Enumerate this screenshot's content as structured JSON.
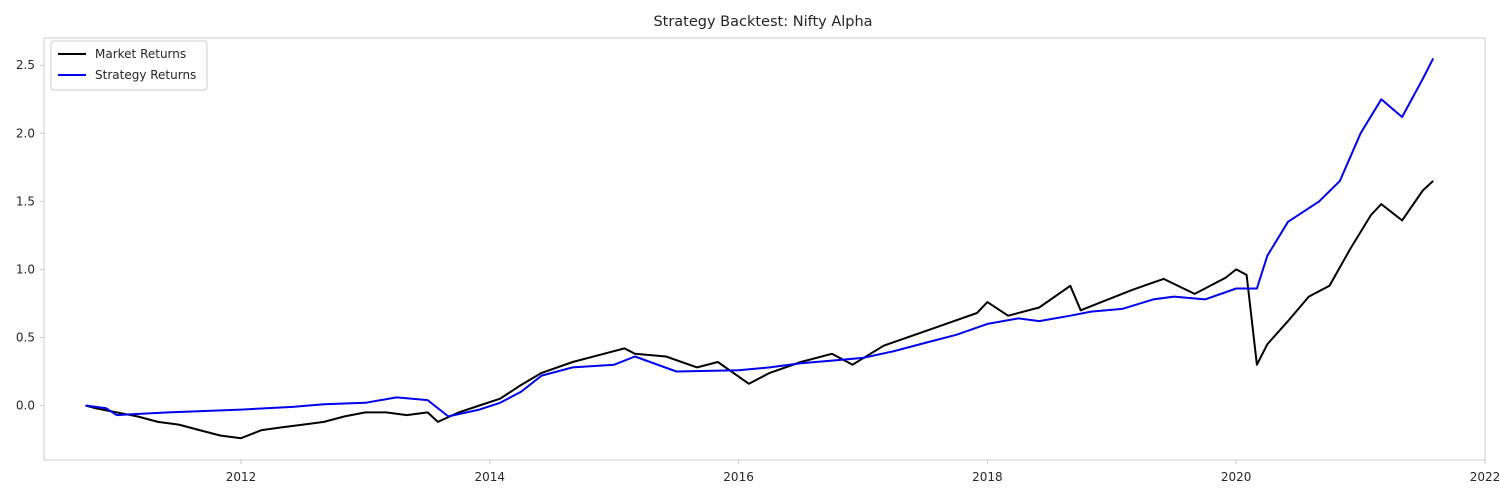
{
  "chart_data": {
    "type": "line",
    "title": "Strategy Backtest: Nifty Alpha",
    "xlabel": "",
    "ylabel": "",
    "x_ticks": [
      "2012",
      "2014",
      "2016",
      "2018",
      "2020",
      "2022"
    ],
    "y_ticks": [
      "0.0",
      "0.5",
      "1.0",
      "1.5",
      "2.0",
      "2.5"
    ],
    "xlim": [
      "2010-06",
      "2022-01"
    ],
    "ylim": [
      -0.4,
      2.7
    ],
    "grid": false,
    "legend": {
      "position": "top-left"
    },
    "series": [
      {
        "name": "Market Returns",
        "color": "#000000",
        "x": [
          "2010-10",
          "2010-11",
          "2011-01",
          "2011-03",
          "2011-05",
          "2011-07",
          "2011-09",
          "2011-11",
          "2012-01",
          "2012-03",
          "2012-05",
          "2012-07",
          "2012-09",
          "2012-11",
          "2013-01",
          "2013-03",
          "2013-05",
          "2013-07",
          "2013-08",
          "2013-10",
          "2013-12",
          "2014-02",
          "2014-04",
          "2014-06",
          "2014-09",
          "2014-12",
          "2015-02",
          "2015-03",
          "2015-06",
          "2015-09",
          "2015-11",
          "2016-02",
          "2016-04",
          "2016-07",
          "2016-10",
          "2016-12",
          "2017-03",
          "2017-06",
          "2017-09",
          "2017-12",
          "2018-01",
          "2018-03",
          "2018-06",
          "2018-09",
          "2018-10",
          "2018-12",
          "2019-03",
          "2019-06",
          "2019-09",
          "2019-12",
          "2020-01",
          "2020-02",
          "2020-03",
          "2020-04",
          "2020-06",
          "2020-08",
          "2020-10",
          "2020-12",
          "2021-02",
          "2021-03",
          "2021-05",
          "2021-07",
          "2021-08"
        ],
        "y": [
          0.0,
          -0.02,
          -0.05,
          -0.08,
          -0.12,
          -0.14,
          -0.18,
          -0.22,
          -0.24,
          -0.18,
          -0.16,
          -0.14,
          -0.12,
          -0.08,
          -0.05,
          -0.05,
          -0.07,
          -0.05,
          -0.12,
          -0.05,
          0.0,
          0.05,
          0.15,
          0.24,
          0.32,
          0.38,
          0.42,
          0.38,
          0.36,
          0.28,
          0.32,
          0.16,
          0.24,
          0.32,
          0.38,
          0.3,
          0.44,
          0.52,
          0.6,
          0.68,
          0.76,
          0.66,
          0.72,
          0.88,
          0.7,
          0.76,
          0.85,
          0.93,
          0.82,
          0.94,
          1.0,
          0.96,
          0.3,
          0.45,
          0.62,
          0.8,
          0.88,
          1.15,
          1.4,
          1.48,
          1.36,
          1.58,
          1.65
        ]
      },
      {
        "name": "Strategy Returns",
        "color": "#0000ee",
        "x": [
          "2010-10",
          "2010-12",
          "2011-01",
          "2011-06",
          "2012-01",
          "2012-06",
          "2012-09",
          "2013-01",
          "2013-04",
          "2013-07",
          "2013-09",
          "2013-12",
          "2014-02",
          "2014-04",
          "2014-06",
          "2014-09",
          "2015-01",
          "2015-03",
          "2015-07",
          "2016-01",
          "2016-04",
          "2016-07",
          "2016-10",
          "2017-01",
          "2017-04",
          "2017-07",
          "2017-10",
          "2018-01",
          "2018-04",
          "2018-06",
          "2018-09",
          "2018-11",
          "2019-02",
          "2019-05",
          "2019-07",
          "2019-10",
          "2020-01",
          "2020-03",
          "2020-04",
          "2020-06",
          "2020-09",
          "2020-11",
          "2021-01",
          "2021-03",
          "2021-05",
          "2021-07",
          "2021-08"
        ],
        "y": [
          0.0,
          -0.02,
          -0.07,
          -0.05,
          -0.03,
          -0.01,
          0.01,
          0.02,
          0.06,
          0.04,
          -0.08,
          -0.03,
          0.02,
          0.1,
          0.22,
          0.28,
          0.3,
          0.36,
          0.25,
          0.26,
          0.28,
          0.31,
          0.33,
          0.35,
          0.4,
          0.46,
          0.52,
          0.6,
          0.64,
          0.62,
          0.66,
          0.69,
          0.71,
          0.78,
          0.8,
          0.78,
          0.86,
          0.86,
          1.1,
          1.35,
          1.5,
          1.65,
          2.0,
          2.25,
          2.12,
          2.4,
          2.55
        ]
      }
    ]
  }
}
